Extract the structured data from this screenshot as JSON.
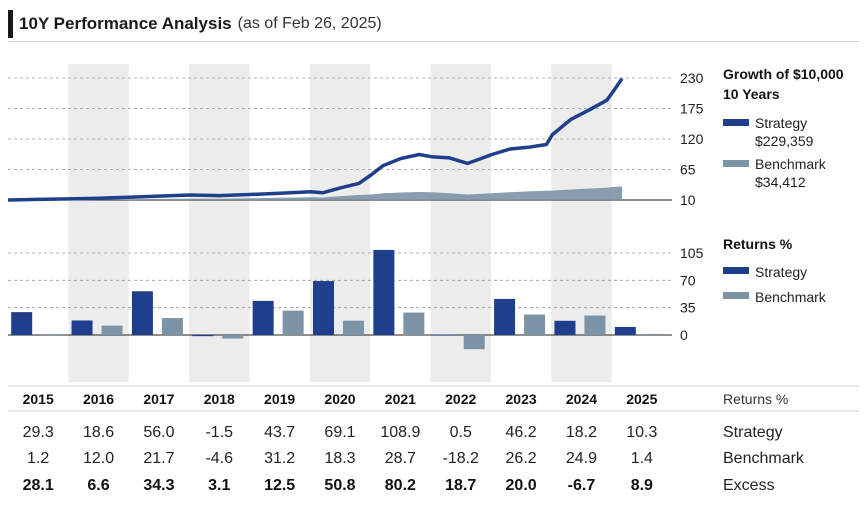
{
  "header": {
    "title": "10Y Performance Analysis",
    "subtitle": "(as of Feb 26, 2025)"
  },
  "colors": {
    "strategy": "#1f3f8c",
    "benchmark": "#7d93a6",
    "band": "#ececec"
  },
  "chart_data": [
    {
      "type": "line",
      "title": "Growth of $10,000",
      "subtitle": "10 Years",
      "yticks": [
        10,
        65,
        120,
        175,
        230
      ],
      "ylim": [
        10,
        240
      ],
      "x": [
        2015.0,
        2015.5,
        2016.0,
        2016.5,
        2017.0,
        2017.5,
        2018.0,
        2018.5,
        2019.0,
        2019.5,
        2020.0,
        2020.2,
        2020.5,
        2020.8,
        2021.0,
        2021.2,
        2021.5,
        2021.8,
        2022.0,
        2022.3,
        2022.6,
        2022.8,
        2023.0,
        2023.3,
        2023.6,
        2023.9,
        2024.0,
        2024.3,
        2024.6,
        2024.9,
        2025.0,
        2025.15
      ],
      "series": [
        {
          "name": "Strategy",
          "value_label": "$229,359",
          "values": [
            10,
            11,
            12,
            13,
            15,
            17,
            19,
            18,
            20,
            22,
            25,
            23,
            32,
            40,
            55,
            72,
            85,
            92,
            88,
            86,
            76,
            84,
            92,
            102,
            105,
            110,
            128,
            155,
            172,
            190,
            205,
            229
          ]
        },
        {
          "name": "Benchmark",
          "value_label": "$34,412",
          "values": [
            10,
            10.3,
            10.5,
            11,
            11.5,
            12,
            12.6,
            12.2,
            13,
            14,
            15,
            14.5,
            17,
            19,
            20,
            22,
            23.5,
            24.5,
            24,
            22,
            20,
            21,
            22,
            24,
            25.5,
            26.5,
            27,
            29,
            30.5,
            32,
            33.5,
            34.4
          ]
        }
      ]
    },
    {
      "type": "bar",
      "title": "Returns %",
      "yticks": [
        0,
        35,
        70,
        105
      ],
      "categories": [
        "2015",
        "2016",
        "2017",
        "2018",
        "2019",
        "2020",
        "2021",
        "2022",
        "2023",
        "2024",
        "2025"
      ],
      "series": [
        {
          "name": "Strategy",
          "values": [
            29.3,
            18.6,
            56.0,
            -1.5,
            43.7,
            69.1,
            108.9,
            0.5,
            46.2,
            18.2,
            10.3
          ]
        },
        {
          "name": "Benchmark",
          "values": [
            1.2,
            12.0,
            21.7,
            -4.6,
            31.2,
            18.3,
            28.7,
            -18.2,
            26.2,
            24.9,
            1.4
          ]
        }
      ]
    }
  ],
  "table": {
    "years": [
      "2015",
      "2016",
      "2017",
      "2018",
      "2019",
      "2020",
      "2021",
      "2022",
      "2023",
      "2024",
      "2025"
    ],
    "header_label": "Returns %",
    "rows": [
      {
        "label": "Strategy",
        "values": [
          "29.3",
          "18.6",
          "56.0",
          "-1.5",
          "43.7",
          "69.1",
          "108.9",
          "0.5",
          "46.2",
          "18.2",
          "10.3"
        ],
        "bold": false
      },
      {
        "label": "Benchmark",
        "values": [
          "1.2",
          "12.0",
          "21.7",
          "-4.6",
          "31.2",
          "18.3",
          "28.7",
          "-18.2",
          "26.2",
          "24.9",
          "1.4"
        ],
        "bold": false
      },
      {
        "label": "Excess",
        "values": [
          "28.1",
          "6.6",
          "34.3",
          "3.1",
          "12.5",
          "50.8",
          "80.2",
          "18.7",
          "20.0",
          "-6.7",
          "8.9"
        ],
        "bold": true
      }
    ]
  }
}
